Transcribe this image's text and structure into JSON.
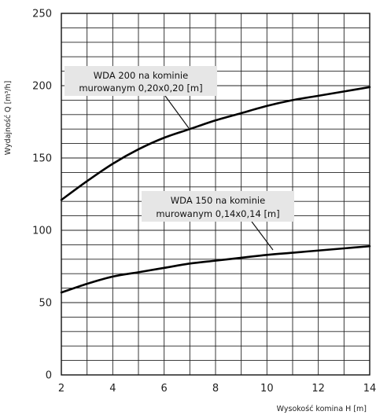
{
  "chart_data": {
    "type": "line",
    "xlabel": "Wysokość komina H [m]",
    "ylabel": "Wydajność Q [m³/h]",
    "xlim": [
      2,
      14
    ],
    "ylim": [
      0,
      250
    ],
    "x_ticks": [
      "2",
      "4",
      "6",
      "8",
      "10",
      "12",
      "14"
    ],
    "y_ticks": [
      "0",
      "50",
      "100",
      "150",
      "200",
      "250"
    ],
    "grid": true,
    "series": [
      {
        "name": "WDA 200 na kominie murowanym 0,20x0,20 [m]",
        "label_lines": [
          "WDA 200 na kominie",
          "murowanym 0,20x0,20 [m]"
        ],
        "x": [
          2,
          3,
          4,
          5,
          6,
          7,
          8,
          9,
          10,
          11,
          12,
          13,
          14
        ],
        "y": [
          121,
          134,
          146,
          156,
          164,
          170,
          176,
          181,
          186,
          190,
          193,
          196,
          199
        ]
      },
      {
        "name": "WDA 150 na kominie murowanym 0,14x0,14 [m]",
        "label_lines": [
          "WDA 150 na kominie",
          "murowanym 0,14x0,14 [m]"
        ],
        "x": [
          2,
          3,
          4,
          5,
          6,
          7,
          8,
          9,
          10,
          11,
          12,
          13,
          14
        ],
        "y": [
          57,
          63,
          68,
          71,
          74,
          77,
          79,
          81,
          83,
          84.5,
          86,
          87.5,
          89
        ]
      }
    ]
  }
}
